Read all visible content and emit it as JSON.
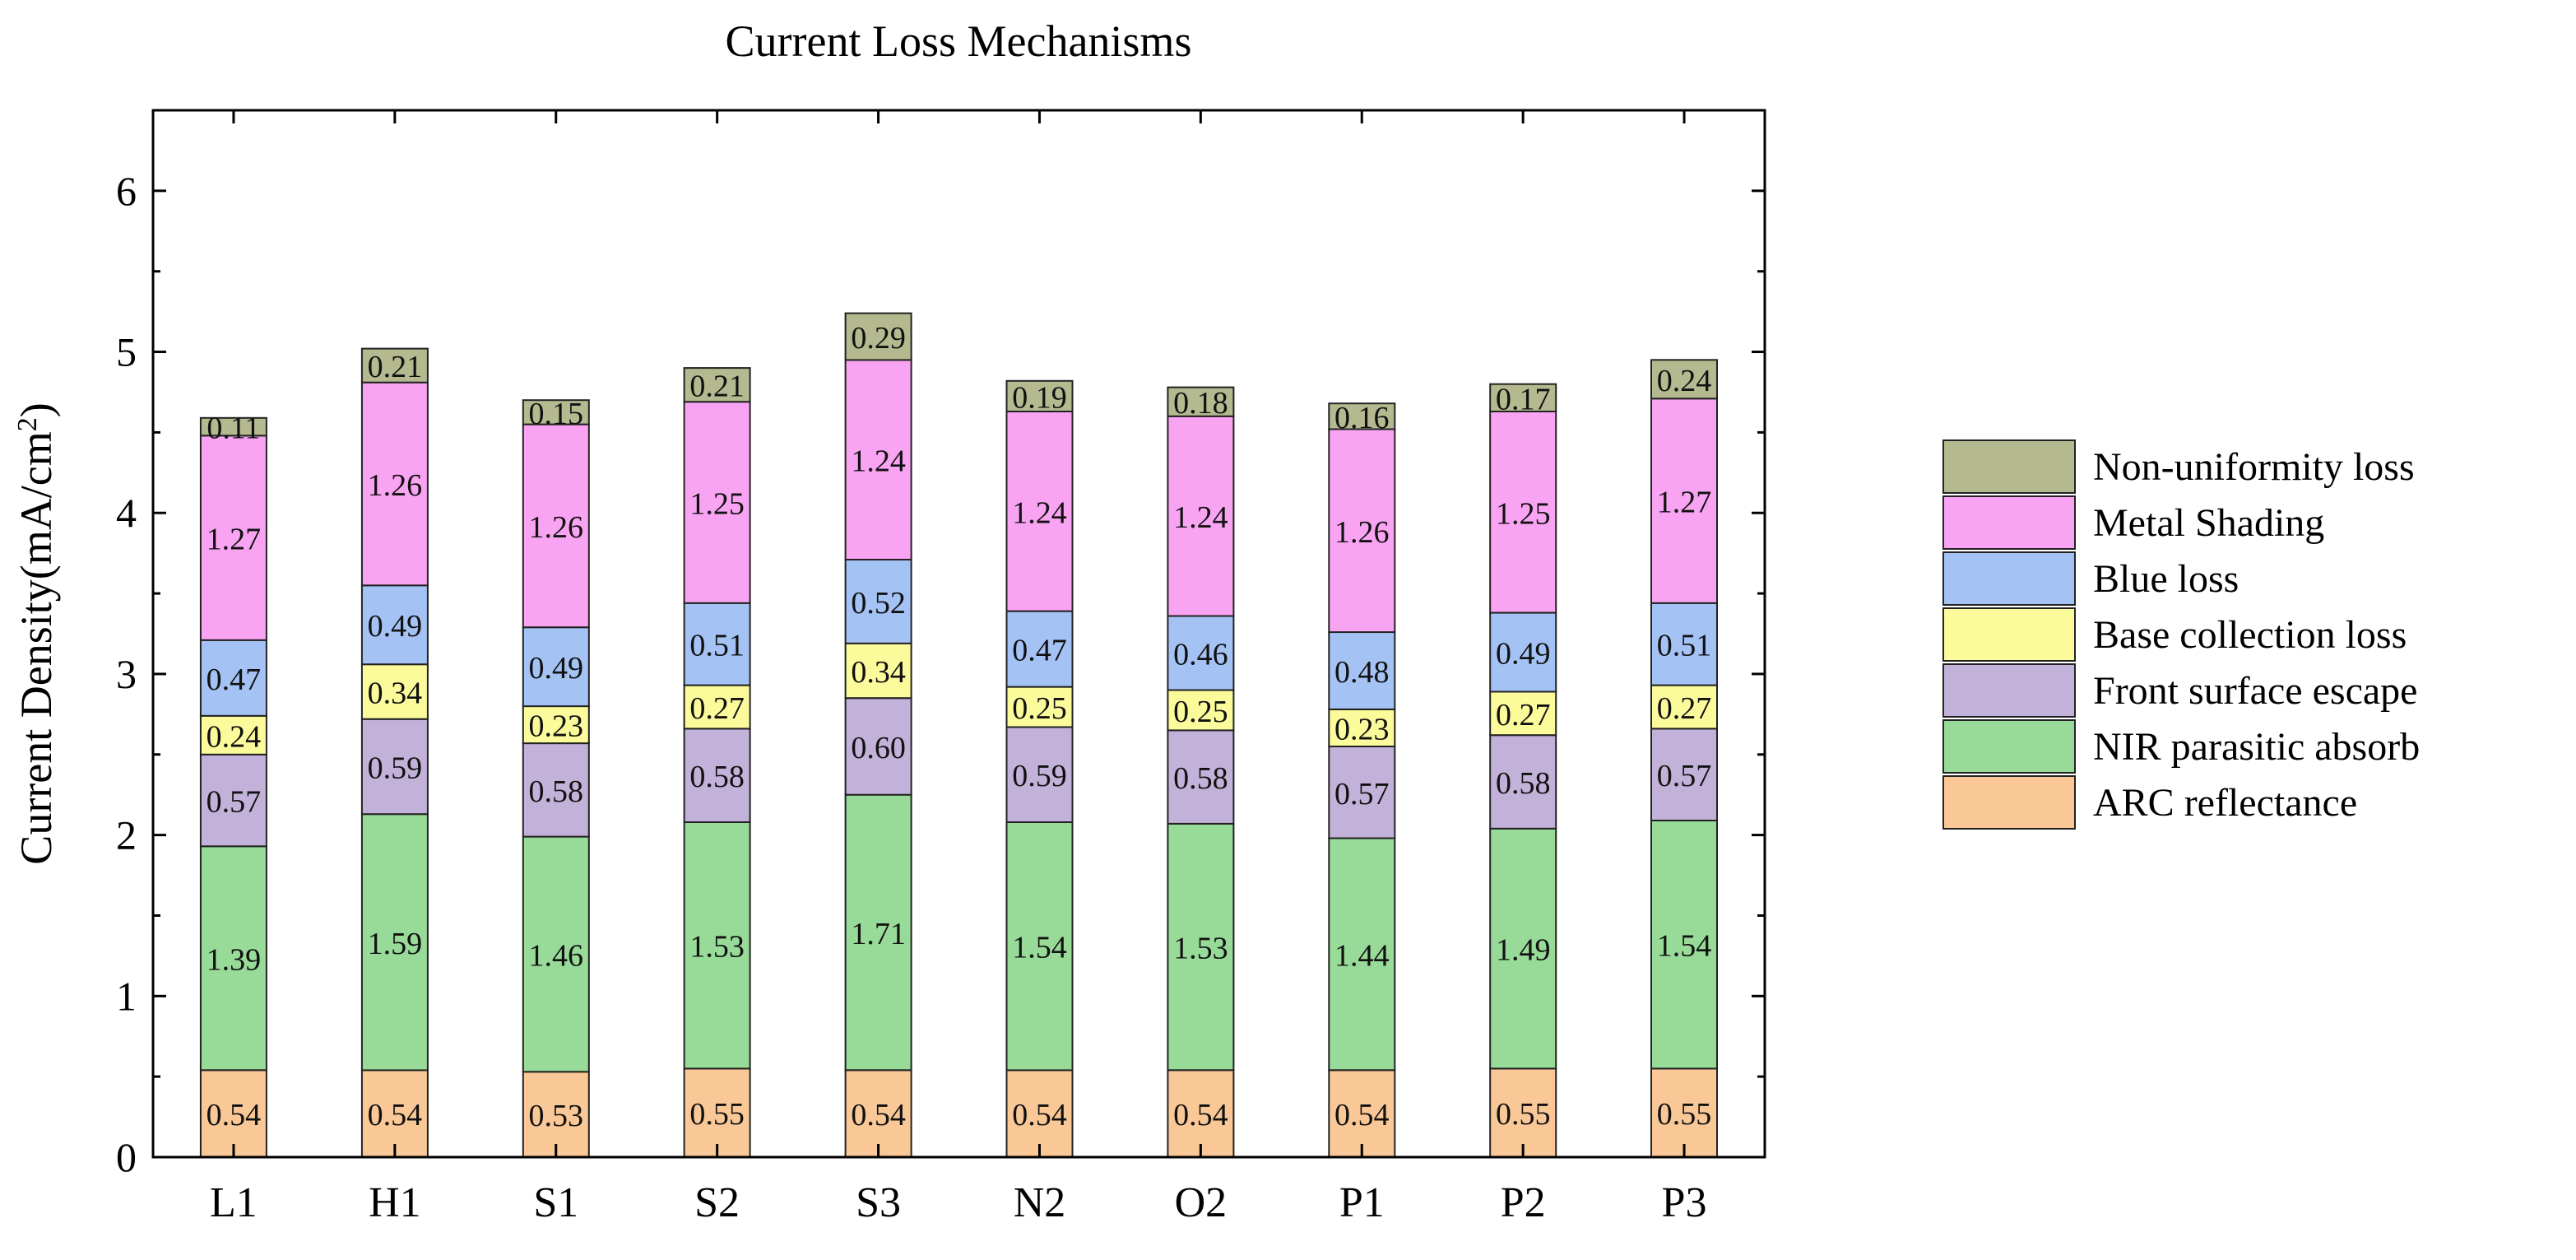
{
  "chart_data": {
    "type": "bar",
    "stacked": true,
    "title": "Current Loss Mechanisms",
    "ylabel": {
      "base": "Current  Density(mA/cm",
      "sup": "2",
      "tail": ")"
    },
    "xlabel": "",
    "ylim": [
      0,
      6.5
    ],
    "yticks": [
      0,
      1,
      2,
      3,
      4,
      5,
      6
    ],
    "ytick_labels": [
      "0",
      "1",
      "2",
      "3",
      "4",
      "5",
      "6"
    ],
    "grid": false,
    "legend_position": "right",
    "categories": [
      "L1",
      "H1",
      "S1",
      "S2",
      "S3",
      "N2",
      "O2",
      "P1",
      "P2",
      "P3"
    ],
    "series": [
      {
        "name": "ARC reflectance",
        "color": "#f9c896",
        "values": [
          0.54,
          0.54,
          0.53,
          0.55,
          0.54,
          0.54,
          0.54,
          0.54,
          0.55,
          0.55
        ],
        "labels": [
          "0.54",
          "0.54",
          "0.53",
          "0.55",
          "0.54",
          "0.54",
          "0.54",
          "0.54",
          "0.55",
          "0.55"
        ]
      },
      {
        "name": "NIR parasitic absorb",
        "color": "#98da98",
        "values": [
          1.39,
          1.59,
          1.46,
          1.53,
          1.71,
          1.54,
          1.53,
          1.44,
          1.49,
          1.54
        ],
        "labels": [
          "1.39",
          "1.59",
          "1.46",
          "1.53",
          "1.71",
          "1.54",
          "1.53",
          "1.44",
          "1.49",
          "1.54"
        ]
      },
      {
        "name": "Front surface escape",
        "color": "#c2b2d9",
        "values": [
          0.57,
          0.59,
          0.58,
          0.58,
          0.6,
          0.59,
          0.58,
          0.57,
          0.58,
          0.57
        ],
        "labels": [
          "0.57",
          "0.59",
          "0.58",
          "0.58",
          "0.60",
          "0.59",
          "0.58",
          "0.57",
          "0.58",
          "0.57"
        ]
      },
      {
        "name": "Base collection loss",
        "color": "#fbfb9c",
        "values": [
          0.24,
          0.34,
          0.23,
          0.27,
          0.34,
          0.25,
          0.25,
          0.23,
          0.27,
          0.27
        ],
        "labels": [
          "0.24",
          "0.34",
          "0.23",
          "0.27",
          "0.34",
          "0.25",
          "0.25",
          "0.23",
          "0.27",
          "0.27"
        ]
      },
      {
        "name": "Blue loss",
        "color": "#a4c2f4",
        "values": [
          0.47,
          0.49,
          0.49,
          0.51,
          0.52,
          0.47,
          0.46,
          0.48,
          0.49,
          0.51
        ],
        "labels": [
          "0.47",
          "0.49",
          "0.49",
          "0.51",
          "0.52",
          "0.47",
          "0.46",
          "0.48",
          "0.49",
          "0.51"
        ]
      },
      {
        "name": "Metal Shading",
        "color": "#f9a4f3",
        "values": [
          1.27,
          1.26,
          1.26,
          1.25,
          1.24,
          1.24,
          1.24,
          1.26,
          1.25,
          1.27
        ],
        "labels": [
          "1.27",
          "1.26",
          "1.26",
          "1.25",
          "1.24",
          "1.24",
          "1.24",
          "1.26",
          "1.25",
          "1.27"
        ]
      },
      {
        "name": "Non-uniformity loss",
        "color": "#b5b98f",
        "values": [
          0.11,
          0.21,
          0.15,
          0.21,
          0.29,
          0.19,
          0.18,
          0.16,
          0.17,
          0.24
        ],
        "labels": [
          "0.11",
          "0.21",
          "0.15",
          "0.21",
          "0.29",
          "0.19",
          "0.18",
          "0.16",
          "0.17",
          "0.24"
        ]
      }
    ],
    "legend_order": [
      "Non-uniformity loss",
      "Metal Shading",
      "Blue loss",
      "Base collection loss",
      "Front surface escape",
      "NIR parasitic absorb",
      "ARC reflectance"
    ]
  }
}
